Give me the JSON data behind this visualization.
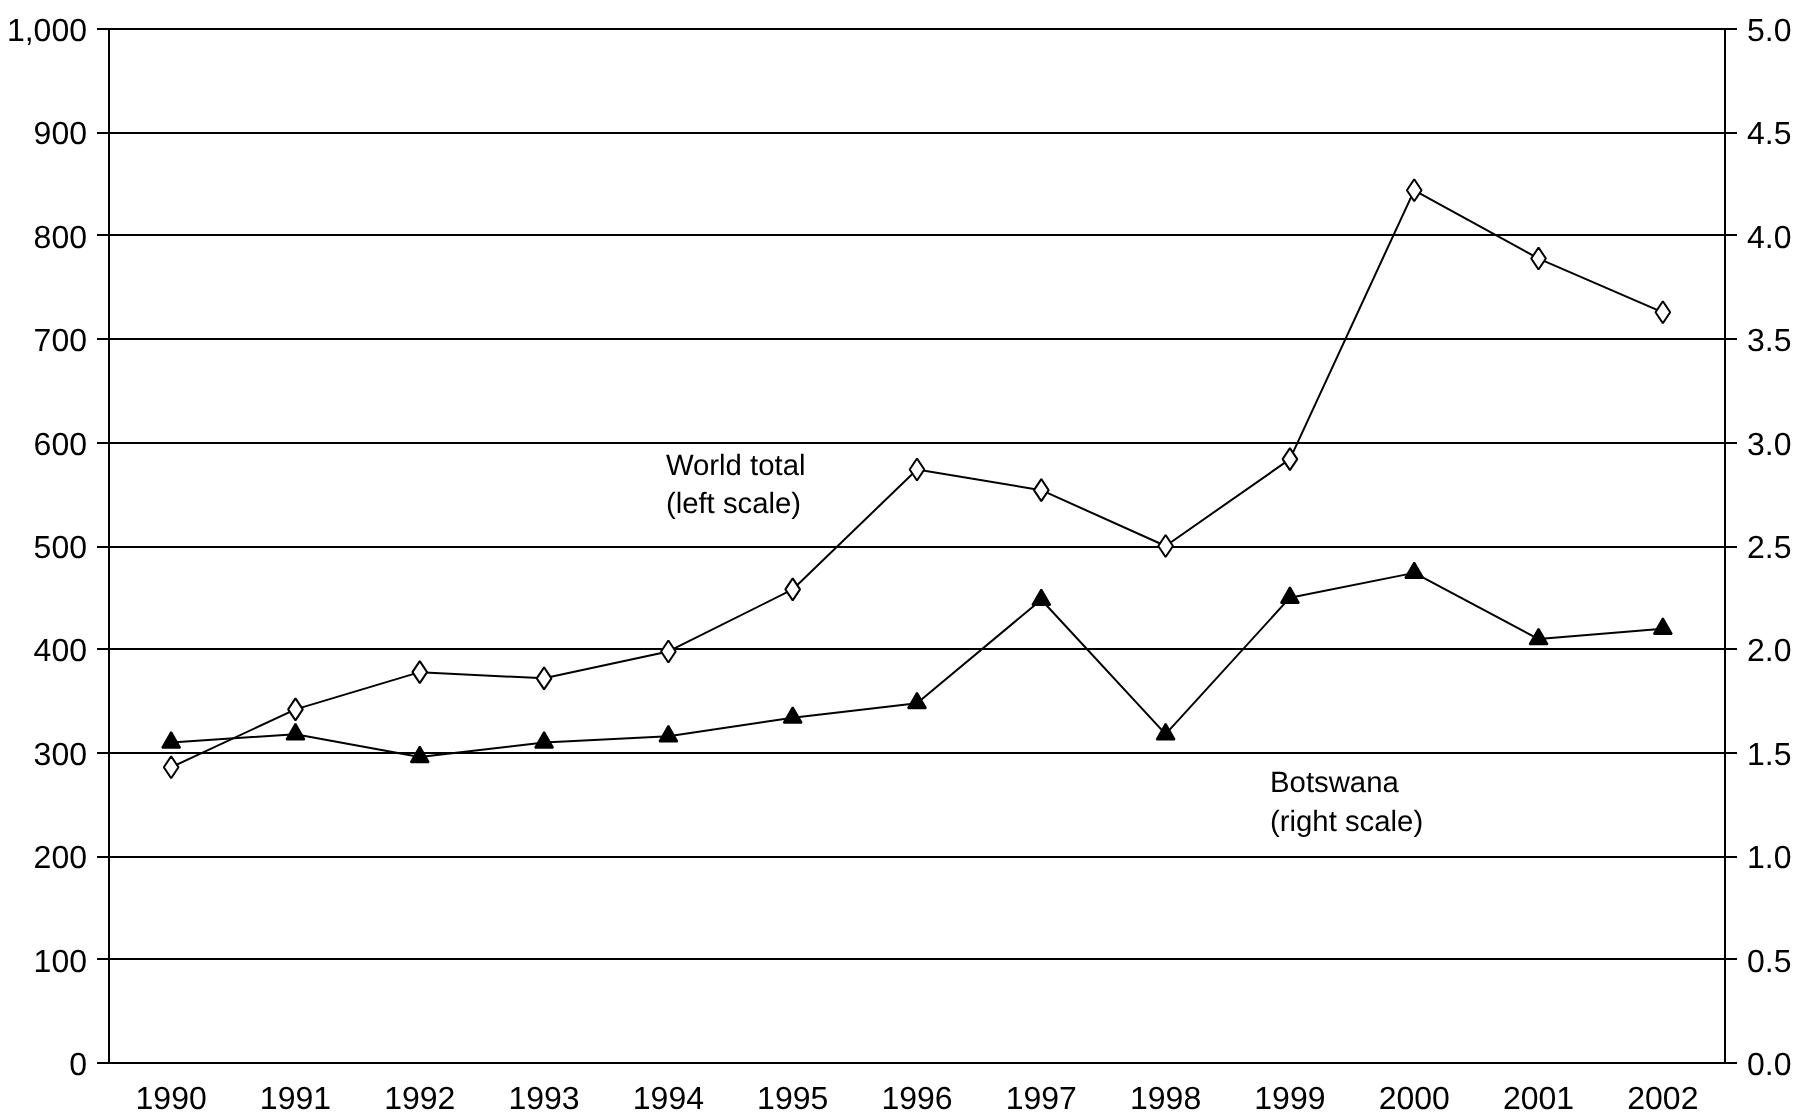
{
  "chart_data": {
    "type": "line",
    "categories": [
      "1990",
      "1991",
      "1992",
      "1993",
      "1994",
      "1995",
      "1996",
      "1997",
      "1998",
      "1999",
      "2000",
      "2001",
      "2002"
    ],
    "series": [
      {
        "color": "#000000",
        "marker": "diamond",
        "values": [
          286,
          342,
          378,
          372,
          398,
          458,
          574,
          554,
          500,
          584,
          844,
          778,
          726
        ]
      },
      {
        "color": "#000000",
        "marker": "triangle",
        "axis": "y2",
        "values": [
          1.55,
          1.59,
          1.48,
          1.55,
          1.58,
          1.67,
          1.74,
          2.24,
          1.59,
          2.25,
          2.37,
          2.05,
          2.1
        ]
      }
    ],
    "ylim": [
      0,
      1000
    ],
    "yticks": [
      0,
      {
        "value": 100,
        "label": "100"
      },
      {
        "value": 200,
        "label": "200"
      },
      {
        "value": 300,
        "label": "300"
      },
      {
        "value": 400,
        "label": "400"
      },
      {
        "value": 500,
        "label": "500"
      },
      {
        "value": 600,
        "label": "600"
      },
      {
        "value": 700,
        "label": "700"
      },
      {
        "value": 800,
        "label": "800"
      },
      {
        "value": 900,
        "label": "900"
      },
      {
        "value": 1000,
        "label": "1,000"
      }
    ],
    "y2lim": [
      0,
      5
    ],
    "y2ticks": [
      {
        "value": 0,
        "label": "0.0"
      },
      {
        "value": 0.5,
        "label": "0.5"
      },
      {
        "value": 1,
        "label": "1.0"
      },
      {
        "value": 1.5,
        "label": "1.5"
      },
      {
        "value": 2,
        "label": "2.0"
      },
      {
        "value": 2.5,
        "label": "2.5"
      },
      {
        "value": 3,
        "label": "3.0"
      },
      {
        "value": 3.5,
        "label": "3.5"
      },
      {
        "value": 4,
        "label": "4.0"
      },
      {
        "value": 4.5,
        "label": "4.5"
      },
      {
        "value": 5,
        "label": "5.0"
      }
    ],
    "grid": "y",
    "line_style": "solid",
    "annotations": [
      "World total\n(left scale)",
      "Botswana\n(right scale)"
    ]
  }
}
